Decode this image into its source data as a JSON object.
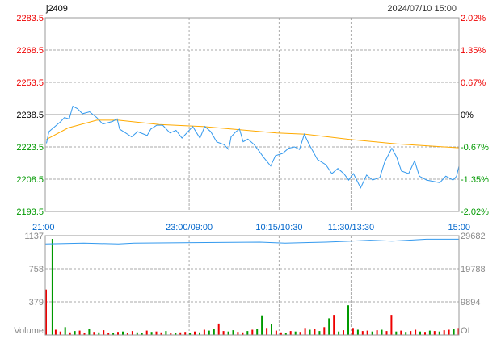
{
  "header": {
    "symbol": "j2409",
    "datetime": "2024/07/10 15:00"
  },
  "colors": {
    "up": "#ee0000",
    "down": "#009900",
    "flat": "#000000",
    "price_line": "#3399ee",
    "avg_line": "#ffaa00",
    "grid": "#aaaaaa",
    "frame": "#999999",
    "time_label": "#0066cc",
    "volume_label": "#888888"
  },
  "chart_data": [
    {
      "type": "line",
      "panel": "price",
      "ylim": [
        2193.5,
        2283.5
      ],
      "yticks_left": [
        "2283.5",
        "2268.5",
        "2253.5",
        "2238.5",
        "2223.5",
        "2208.5",
        "2193.5"
      ],
      "yticks_right": [
        "2.02%",
        "1.35%",
        "0.67%",
        "0%",
        "-0.67%",
        "-1.35%",
        "-2.02%"
      ],
      "reference_price": 2238.5,
      "sessions": [
        [
          "21:00",
          "23:00"
        ],
        [
          "09:00",
          "10:15"
        ],
        [
          "10:30",
          "11:30"
        ],
        [
          "13:30",
          "15:00"
        ]
      ],
      "xticks": [
        "21:00",
        "23:00/09:00",
        "10:15/10:30",
        "11:30/13:30",
        "15:00"
      ],
      "grid": true,
      "series": [
        {
          "key": "price",
          "points": [
            [
              "21:01",
              2225.2
            ],
            [
              "21:03",
              2230.6
            ],
            [
              "21:13",
              2235.3
            ],
            [
              "21:16",
              2237.1
            ],
            [
              "21:20",
              2236.5
            ],
            [
              "21:23",
              2242.4
            ],
            [
              "21:27",
              2241.2
            ],
            [
              "21:31",
              2238.9
            ],
            [
              "21:37",
              2239.8
            ],
            [
              "21:43",
              2237.1
            ],
            [
              "21:48",
              2234.1
            ],
            [
              "21:56",
              2235.3
            ],
            [
              "22:00",
              2236.5
            ],
            [
              "22:02",
              2231.8
            ],
            [
              "22:12",
              2228.2
            ],
            [
              "22:17",
              2230.6
            ],
            [
              "22:25",
              2228.8
            ],
            [
              "22:28",
              2231.8
            ],
            [
              "22:33",
              2233.6
            ],
            [
              "22:38",
              2233.6
            ],
            [
              "22:44",
              2230.0
            ],
            [
              "22:49",
              2231.2
            ],
            [
              "22:54",
              2227.6
            ],
            [
              "22:59",
              2230.6
            ],
            [
              "09:03",
              2233.0
            ],
            [
              "09:09",
              2227.6
            ],
            [
              "09:13",
              2233.0
            ],
            [
              "09:18",
              2230.6
            ],
            [
              "09:23",
              2225.8
            ],
            [
              "09:29",
              2224.6
            ],
            [
              "09:33",
              2222.3
            ],
            [
              "09:35",
              2228.2
            ],
            [
              "09:39",
              2230.6
            ],
            [
              "09:42",
              2231.8
            ],
            [
              "09:45",
              2225.9
            ],
            [
              "09:49",
              2227.1
            ],
            [
              "09:54",
              2224.7
            ],
            [
              "09:59",
              2221.1
            ],
            [
              "10:02",
              2218.7
            ],
            [
              "10:08",
              2214.6
            ],
            [
              "10:12",
              2219.4
            ],
            [
              "10:33",
              2220.5
            ],
            [
              "10:38",
              2222.9
            ],
            [
              "10:43",
              2223.5
            ],
            [
              "10:47",
              2222.3
            ],
            [
              "10:51",
              2229.4
            ],
            [
              "10:55",
              2224.7
            ],
            [
              "11:02",
              2217.6
            ],
            [
              "11:09",
              2215.2
            ],
            [
              "11:14",
              2211.1
            ],
            [
              "11:19",
              2213.5
            ],
            [
              "11:24",
              2211.1
            ],
            [
              "11:28",
              2208.1
            ],
            [
              "13:32",
              2211.1
            ],
            [
              "13:38",
              2204.5
            ],
            [
              "13:43",
              2210.4
            ],
            [
              "13:48",
              2208.1
            ],
            [
              "13:54",
              2209.3
            ],
            [
              "13:58",
              2216.4
            ],
            [
              "14:04",
              2222.9
            ],
            [
              "14:08",
              2218.8
            ],
            [
              "14:12",
              2212.3
            ],
            [
              "14:18",
              2211.1
            ],
            [
              "14:23",
              2217.0
            ],
            [
              "14:27",
              2209.9
            ],
            [
              "14:33",
              2208.1
            ],
            [
              "14:44",
              2206.9
            ],
            [
              "14:49",
              2209.9
            ],
            [
              "14:55",
              2208.1
            ],
            [
              "14:58",
              2209.9
            ],
            [
              "15:00",
              2214.6
            ]
          ]
        },
        {
          "key": "average",
          "points": [
            [
              "21:01",
              2227.0
            ],
            [
              "21:19",
              2232.3
            ],
            [
              "21:43",
              2235.9
            ],
            [
              "22:01",
              2235.9
            ],
            [
              "22:35",
              2233.9
            ],
            [
              "09:13",
              2232.9
            ],
            [
              "10:13",
              2230.0
            ],
            [
              "10:52",
              2229.4
            ],
            [
              "11:29",
              2227.0
            ],
            [
              "14:08",
              2224.9
            ],
            [
              "15:00",
              2223.1
            ]
          ]
        }
      ]
    },
    {
      "type": "bar",
      "panel": "volume",
      "ylim": [
        0,
        1137
      ],
      "yticks_left": [
        "1137",
        "758",
        "379"
      ],
      "yticks_right": [
        "29682",
        "19788",
        "9894"
      ],
      "ylabel_left": "Volume",
      "ylabel_right": "OI",
      "oi_ylim": [
        0,
        29682
      ],
      "bar_interval_minutes": 4,
      "volume": [
        520,
        1100,
        60,
        40,
        90,
        30,
        45,
        50,
        25,
        70,
        35,
        30,
        55,
        20,
        25,
        35,
        40,
        20,
        45,
        30,
        25,
        50,
        35,
        40,
        30,
        45,
        25,
        20,
        30,
        35,
        25,
        40,
        30,
        60,
        50,
        70,
        130,
        45,
        40,
        55,
        35,
        30,
        45,
        60,
        70,
        225,
        80,
        120,
        50,
        30,
        20,
        45,
        40,
        35,
        80,
        60,
        70,
        45,
        90,
        190,
        230,
        40,
        55,
        340,
        80,
        60,
        45,
        50,
        40,
        55,
        60,
        45,
        230,
        40,
        50,
        35,
        45,
        60,
        40,
        35,
        50,
        45,
        40,
        55,
        60,
        70,
        80
      ],
      "volume_up": [
        true,
        false,
        true,
        true,
        false,
        true,
        false,
        true,
        true,
        false,
        true,
        false,
        true,
        true,
        false,
        true,
        false,
        true,
        true,
        false,
        false,
        true,
        false,
        true,
        true,
        false,
        true,
        false,
        true,
        true,
        false,
        true,
        false,
        true,
        false,
        false,
        true,
        true,
        false,
        false,
        true,
        true,
        false,
        true,
        false,
        false,
        true,
        false,
        true,
        true,
        false,
        true,
        false,
        true,
        true,
        false,
        true,
        false,
        true,
        false,
        true,
        false,
        true,
        false,
        true,
        false,
        true,
        true,
        false,
        true,
        false,
        true,
        true,
        false,
        true,
        false,
        true,
        true,
        false,
        true,
        false,
        true,
        false,
        true,
        true,
        false,
        true
      ],
      "open_interest": [
        [
          "21:00",
          27190
        ],
        [
          "21:32",
          27470
        ],
        [
          "22:01",
          27190
        ],
        [
          "22:14",
          27470
        ],
        [
          "09:59",
          27760
        ],
        [
          "10:35",
          27470
        ],
        [
          "11:09",
          27760
        ],
        [
          "13:30",
          28050
        ],
        [
          "13:46",
          28340
        ],
        [
          "14:04",
          28050
        ],
        [
          "14:18",
          28340
        ],
        [
          "14:33",
          28630
        ],
        [
          "15:00",
          28630
        ]
      ]
    }
  ]
}
